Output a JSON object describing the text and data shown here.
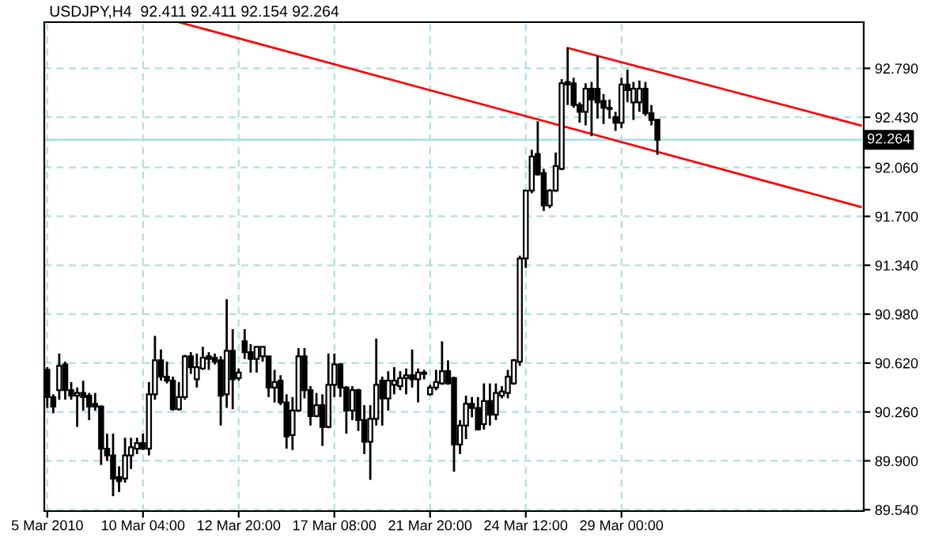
{
  "chart_data": {
    "type": "candlestick",
    "title": "USDJPY,H4  92.411 92.411 92.154 92.264",
    "categories": [
      "5 Mar 2010",
      null,
      null,
      null,
      null,
      null,
      null,
      null,
      null,
      null,
      null,
      null,
      null,
      null,
      null,
      null,
      "10 Mar 04:00",
      null,
      null,
      null,
      null,
      null,
      null,
      null,
      null,
      null,
      null,
      null,
      null,
      null,
      null,
      null,
      "12 Mar 20:00",
      null,
      null,
      null,
      null,
      null,
      null,
      null,
      null,
      null,
      null,
      null,
      null,
      null,
      null,
      null,
      "17 Mar 08:00",
      null,
      null,
      null,
      null,
      null,
      null,
      null,
      null,
      null,
      null,
      null,
      null,
      null,
      null,
      null,
      "21 Mar 20:00",
      null,
      null,
      null,
      null,
      null,
      null,
      null,
      null,
      null,
      null,
      null,
      null,
      null,
      null,
      null,
      "24 Mar 12:00",
      null,
      null,
      null,
      null,
      null,
      null,
      null,
      null,
      null,
      null,
      null,
      null,
      null,
      null,
      null,
      "29 Mar 00:00",
      null,
      null,
      null,
      null,
      null,
      null,
      null,
      null,
      null,
      null,
      null,
      null,
      null,
      null,
      null,
      null,
      null,
      null,
      null,
      null,
      null,
      null,
      null,
      null,
      null,
      null,
      null,
      null,
      null,
      null,
      null,
      null,
      null,
      null,
      null,
      null,
      null,
      null,
      null,
      null
    ],
    "ohlc": [
      [
        90.57,
        90.59,
        90.29,
        90.37
      ],
      [
        90.37,
        90.39,
        90.25,
        90.3
      ],
      [
        90.42,
        90.69,
        90.35,
        90.6
      ],
      [
        90.61,
        90.63,
        90.35,
        90.42
      ],
      [
        90.42,
        90.48,
        90.35,
        90.38
      ],
      [
        90.38,
        90.44,
        90.15,
        90.4
      ],
      [
        90.4,
        90.49,
        90.27,
        90.37
      ],
      [
        90.38,
        90.4,
        90.2,
        90.3
      ],
      [
        90.32,
        90.4,
        90.27,
        90.3
      ],
      [
        90.3,
        90.31,
        89.87,
        89.99
      ],
      [
        89.99,
        90.1,
        89.9,
        89.94
      ],
      [
        89.94,
        90.1,
        89.64,
        89.77
      ],
      [
        89.78,
        89.86,
        89.67,
        89.75
      ],
      [
        89.77,
        90.07,
        89.74,
        89.94
      ],
      [
        89.94,
        90.07,
        89.84,
        90.0
      ],
      [
        89.99,
        90.07,
        89.95,
        90.03
      ],
      [
        90.03,
        90.1,
        89.98,
        89.99
      ],
      [
        89.99,
        90.48,
        89.94,
        90.39
      ],
      [
        90.39,
        90.82,
        90.35,
        90.64
      ],
      [
        90.64,
        90.72,
        90.49,
        90.52
      ],
      [
        90.52,
        90.63,
        90.47,
        90.49
      ],
      [
        90.49,
        90.52,
        90.27,
        90.28
      ],
      [
        90.28,
        90.48,
        90.27,
        90.37
      ],
      [
        90.37,
        90.68,
        90.35,
        90.67
      ],
      [
        90.67,
        90.7,
        90.54,
        90.59
      ],
      [
        90.5,
        90.69,
        90.44,
        90.59
      ],
      [
        90.58,
        90.74,
        90.57,
        90.66
      ],
      [
        90.67,
        90.7,
        90.57,
        90.65
      ],
      [
        90.66,
        90.69,
        90.61,
        90.63
      ],
      [
        90.64,
        90.67,
        90.16,
        90.38
      ],
      [
        90.39,
        91.09,
        90.29,
        90.71
      ],
      [
        90.71,
        90.87,
        90.28,
        90.5
      ],
      [
        90.51,
        90.58,
        90.49,
        90.55
      ],
      [
        90.78,
        90.87,
        90.65,
        90.7
      ],
      [
        90.7,
        90.76,
        90.55,
        90.65
      ],
      [
        90.65,
        90.74,
        90.55,
        90.74
      ],
      [
        90.67,
        90.74,
        90.63,
        90.74
      ],
      [
        90.67,
        90.67,
        90.37,
        90.44
      ],
      [
        90.44,
        90.57,
        90.33,
        90.48
      ],
      [
        90.49,
        90.53,
        90.31,
        90.33
      ],
      [
        90.33,
        90.39,
        89.99,
        90.08
      ],
      [
        90.09,
        90.37,
        89.98,
        90.27
      ],
      [
        90.27,
        90.73,
        90.26,
        90.67
      ],
      [
        90.67,
        90.73,
        90.36,
        90.42
      ],
      [
        90.42,
        90.45,
        90.16,
        90.23
      ],
      [
        90.23,
        90.4,
        90.22,
        90.31
      ],
      [
        90.31,
        90.39,
        90.01,
        90.15
      ],
      [
        90.15,
        90.69,
        90.14,
        90.46
      ],
      [
        90.46,
        90.69,
        90.37,
        90.61
      ],
      [
        90.61,
        90.62,
        90.37,
        90.44
      ],
      [
        90.44,
        90.45,
        90.1,
        90.27
      ],
      [
        90.27,
        90.45,
        90.2,
        90.42
      ],
      [
        90.42,
        90.43,
        90.12,
        90.2
      ],
      [
        90.2,
        90.31,
        89.95,
        90.04
      ],
      [
        90.04,
        90.31,
        89.76,
        90.21
      ],
      [
        90.21,
        90.8,
        90.16,
        90.46
      ],
      [
        90.49,
        90.52,
        90.16,
        90.36
      ],
      [
        90.36,
        90.56,
        90.27,
        90.49
      ],
      [
        90.46,
        90.59,
        90.39,
        90.49
      ],
      [
        90.45,
        90.56,
        90.42,
        90.51
      ],
      [
        90.51,
        90.58,
        90.39,
        90.53
      ],
      [
        90.53,
        90.72,
        90.44,
        90.5
      ],
      [
        90.5,
        90.58,
        90.33,
        90.55
      ],
      [
        90.55,
        90.57,
        90.5,
        90.54
      ],
      [
        90.39,
        90.46,
        90.38,
        90.44
      ],
      [
        90.44,
        90.57,
        90.42,
        90.48
      ],
      [
        90.47,
        90.78,
        90.46,
        90.56
      ],
      [
        90.56,
        90.64,
        90.46,
        90.47
      ],
      [
        90.51,
        90.52,
        89.82,
        90.02
      ],
      [
        90.02,
        90.2,
        89.95,
        90.16
      ],
      [
        90.16,
        90.38,
        90.06,
        90.32
      ],
      [
        90.32,
        90.37,
        90.22,
        90.29
      ],
      [
        90.29,
        90.37,
        90.13,
        90.13
      ],
      [
        90.17,
        90.47,
        90.13,
        90.34
      ],
      [
        90.34,
        90.47,
        90.16,
        90.24
      ],
      [
        90.24,
        90.47,
        90.2,
        90.4
      ],
      [
        90.38,
        90.45,
        90.36,
        90.41
      ],
      [
        90.4,
        90.57,
        90.36,
        90.52
      ],
      [
        90.47,
        90.65,
        90.46,
        90.64
      ],
      [
        90.63,
        91.41,
        90.6,
        91.39
      ],
      [
        91.39,
        91.89,
        91.32,
        91.89
      ],
      [
        91.89,
        92.19,
        91.87,
        92.14
      ],
      [
        92.16,
        92.4,
        92.0,
        92.01
      ],
      [
        92.02,
        92.05,
        91.74,
        91.78
      ],
      [
        91.78,
        91.9,
        91.76,
        91.89
      ],
      [
        91.89,
        92.17,
        91.88,
        92.07
      ],
      [
        92.05,
        92.71,
        92.04,
        92.68
      ],
      [
        92.69,
        92.94,
        92.52,
        92.67
      ],
      [
        92.68,
        92.72,
        92.5,
        92.52
      ],
      [
        92.52,
        92.54,
        92.39,
        92.47
      ],
      [
        92.47,
        92.68,
        92.37,
        92.64
      ],
      [
        92.64,
        92.69,
        92.29,
        92.56
      ],
      [
        92.64,
        92.88,
        92.42,
        92.54
      ],
      [
        92.55,
        92.6,
        92.38,
        92.5
      ],
      [
        92.5,
        92.56,
        92.42,
        92.49
      ],
      [
        92.43,
        92.47,
        92.33,
        92.39
      ],
      [
        92.39,
        92.72,
        92.35,
        92.67
      ],
      [
        92.67,
        92.78,
        92.54,
        92.63
      ],
      [
        92.54,
        92.69,
        92.41,
        92.64
      ],
      [
        92.54,
        92.7,
        92.47,
        92.64
      ],
      [
        92.64,
        92.69,
        92.44,
        92.46
      ],
      [
        92.46,
        92.52,
        92.37,
        92.41
      ],
      [
        92.411,
        92.411,
        92.154,
        92.264
      ],
      null,
      null,
      null,
      null,
      null,
      null,
      null,
      null,
      null,
      null,
      null,
      null,
      null,
      null,
      null,
      null,
      null,
      null,
      null,
      null,
      null,
      null,
      null,
      null,
      null,
      null,
      null,
      null,
      null,
      null,
      null,
      null,
      null,
      null
    ],
    "series": [
      {
        "type": "line",
        "color": "#ff0000",
        "values": [
          null,
          null,
          null,
          null,
          null,
          null,
          null,
          null,
          null,
          null,
          null,
          null,
          null,
          null,
          null,
          null,
          null,
          null,
          null,
          null,
          null,
          null,
          93.13,
          null,
          null,
          null,
          null,
          null,
          null,
          null,
          null,
          null,
          null,
          null,
          null,
          null,
          null,
          null,
          null,
          null,
          null,
          null,
          null,
          null,
          null,
          null,
          null,
          null,
          null,
          null,
          null,
          null,
          null,
          null,
          null,
          null,
          null,
          null,
          null,
          null,
          null,
          null,
          null,
          null,
          null,
          null,
          null,
          null,
          null,
          null,
          null,
          null,
          null,
          null,
          null,
          null,
          null,
          null,
          null,
          null,
          null,
          null,
          null,
          null,
          null,
          null,
          null,
          null,
          null,
          null,
          null,
          null,
          null,
          null,
          null,
          null,
          null,
          null,
          null,
          null,
          null,
          null,
          null,
          null,
          null,
          null,
          null,
          null,
          null,
          null,
          null,
          null,
          null,
          null,
          null,
          null,
          null,
          null,
          null,
          null,
          null,
          null,
          null,
          null,
          null,
          null,
          null,
          null,
          null,
          null,
          null,
          null,
          null,
          null,
          null,
          null,
          91.77
        ]
      },
      {
        "type": "line",
        "color": "#ff0000",
        "values": [
          null,
          null,
          null,
          null,
          null,
          null,
          null,
          null,
          null,
          null,
          null,
          null,
          null,
          null,
          null,
          null,
          null,
          null,
          null,
          null,
          null,
          null,
          null,
          null,
          null,
          null,
          null,
          null,
          null,
          null,
          null,
          null,
          null,
          null,
          null,
          null,
          null,
          null,
          null,
          null,
          null,
          null,
          null,
          null,
          null,
          null,
          null,
          null,
          null,
          null,
          null,
          null,
          null,
          null,
          null,
          null,
          null,
          null,
          null,
          null,
          null,
          null,
          null,
          null,
          null,
          null,
          null,
          null,
          null,
          null,
          null,
          null,
          null,
          null,
          null,
          null,
          null,
          null,
          null,
          null,
          null,
          null,
          null,
          null,
          null,
          null,
          null,
          92.94,
          null,
          null,
          null,
          null,
          null,
          null,
          null,
          null,
          null,
          null,
          null,
          null,
          null,
          null,
          null,
          null,
          null,
          null,
          null,
          null,
          null,
          null,
          null,
          null,
          null,
          null,
          null,
          null,
          null,
          null,
          null,
          null,
          null,
          null,
          null,
          null,
          null,
          null,
          null,
          null,
          null,
          null,
          null,
          null,
          null,
          null,
          null,
          null,
          92.37
        ]
      }
    ],
    "ylim": [
      89.53,
      93.13
    ],
    "yticks": [
      {
        "value": 92.79,
        "label": "92.790"
      },
      {
        "value": 92.43,
        "label": "92.430"
      },
      {
        "value": 92.06,
        "label": "92.060"
      },
      {
        "value": 91.7,
        "label": "91.700"
      },
      {
        "value": 91.34,
        "label": "91.340"
      },
      {
        "value": 90.98,
        "label": "90.980"
      },
      {
        "value": 90.62,
        "label": "90.620"
      },
      {
        "value": 90.26,
        "label": "90.260"
      },
      {
        "value": 89.9,
        "label": "89.900"
      },
      {
        "value": 89.54,
        "label": "89.540"
      }
    ],
    "ref_lines": [
      {
        "axis": "y",
        "value": 92.264,
        "label": "92.264",
        "color": "#b0e0e6"
      }
    ],
    "grid": true
  }
}
